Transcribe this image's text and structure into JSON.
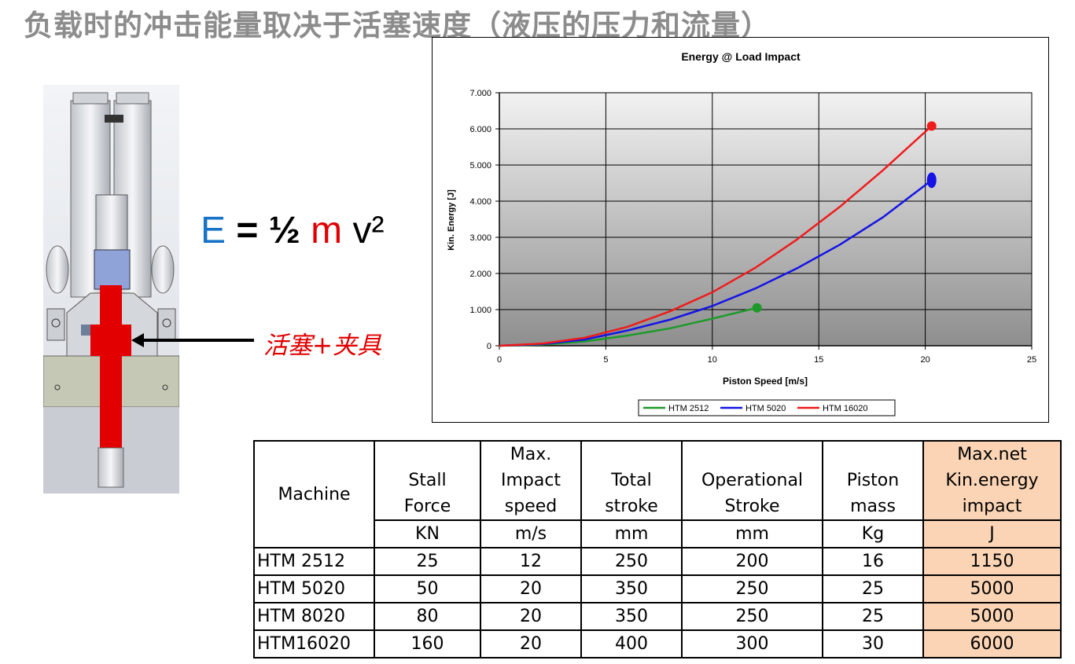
{
  "page": {
    "title": "负载时的冲击能量取决于活塞速度（液压的压力和流量）",
    "formula": {
      "e": "E",
      "eq": "= ½",
      "m": "m",
      "v": "v²"
    },
    "piston_label": "活塞+夹具"
  },
  "colors": {
    "green": "#1e9a2a",
    "blue": "#1414e6",
    "red": "#ee1c1c",
    "highlight": "#fad4b4",
    "plot_bg_top": "#f2f2f2",
    "plot_bg_bottom": "#8e8e8e"
  },
  "chart_data": {
    "type": "line",
    "title": "Energy @ Load Impact",
    "xlabel": "Piston Speed [m/s]",
    "ylabel": "Kin. Energy [J]",
    "xlim": [
      0,
      25
    ],
    "ylim": [
      0,
      7000
    ],
    "x_ticks": [
      0,
      5,
      10,
      15,
      20,
      25
    ],
    "y_ticks": [
      0,
      1000,
      2000,
      3000,
      4000,
      5000,
      6000,
      7000
    ],
    "x_tick_labels": [
      "0",
      "5",
      "10",
      "15",
      "20",
      "25"
    ],
    "y_tick_labels": [
      "0",
      "1.000",
      "2.000",
      "3.000",
      "4.000",
      "5.000",
      "6.000",
      "7.000"
    ],
    "grid": true,
    "legend_position": "bottom-center",
    "series": [
      {
        "name": "HTM 2512",
        "color_key": "green",
        "marker": "circle",
        "x": [
          0,
          2,
          4,
          6,
          8,
          10,
          12.1
        ],
        "y": [
          0,
          30,
          120,
          280,
          480,
          750,
          1050
        ]
      },
      {
        "name": "HTM 5020",
        "color_key": "blue",
        "marker": "ellipse",
        "x": [
          0,
          2,
          4,
          6,
          8,
          10,
          12,
          14,
          16,
          18,
          20.3
        ],
        "y": [
          0,
          45,
          170,
          420,
          720,
          1100,
          1580,
          2150,
          2800,
          3550,
          4580
        ]
      },
      {
        "name": "HTM 16020",
        "color_key": "red",
        "marker": "circle",
        "x": [
          0,
          2,
          4,
          6,
          8,
          10,
          12,
          14,
          16,
          18,
          20.3
        ],
        "y": [
          0,
          60,
          220,
          520,
          950,
          1480,
          2150,
          2950,
          3850,
          4850,
          6080
        ]
      }
    ]
  },
  "table": {
    "header_main": [
      "Machine",
      "Stall\nForce",
      "Max.\nImpact\nspeed",
      "Total\nstroke",
      "Operational\nStroke",
      "Piston\nmass",
      "Max.net\nKin.energy\nimpact"
    ],
    "header_units": [
      "KN",
      "m/s",
      "mm",
      "mm",
      "Kg",
      "J"
    ],
    "rows": [
      [
        "HTM 2512",
        "25",
        "12",
        "250",
        "200",
        "16",
        "1150"
      ],
      [
        "HTM 5020",
        "50",
        "20",
        "350",
        "250",
        "25",
        "5000"
      ],
      [
        "HTM 8020",
        "80",
        "20",
        "350",
        "250",
        "25",
        "5000"
      ],
      [
        "HTM16020",
        "160",
        "20",
        "400",
        "300",
        "30",
        "6000"
      ]
    ]
  }
}
